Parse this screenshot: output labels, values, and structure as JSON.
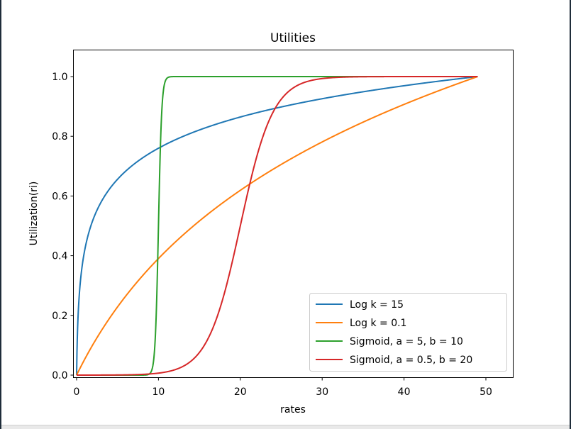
{
  "chart_data": {
    "type": "line",
    "title": "Utilities",
    "xlabel": "rates",
    "ylabel": "Utilization(ri)",
    "xlim": [
      -0.5,
      53.4
    ],
    "ylim": [
      -0.01,
      1.09
    ],
    "xticks": [
      "0",
      "10",
      "20",
      "30",
      "40",
      "50"
    ],
    "yticks": [
      "0.0",
      "0.2",
      "0.4",
      "0.6",
      "0.8",
      "1.0"
    ],
    "grid": false,
    "legend_position": "bottom-right",
    "series": [
      {
        "name": "Log k = 15",
        "color": "#1f77b4",
        "function": "log",
        "k": 15
      },
      {
        "name": "Log k = 0.1",
        "color": "#ff7f0e",
        "function": "log",
        "k": 0.1
      },
      {
        "name": "Sigmoid, a = 5, b = 10",
        "color": "#2ca02c",
        "function": "sigmoid",
        "a": 5,
        "b": 10
      },
      {
        "name": "Sigmoid, a = 0.5, b = 20",
        "color": "#d62728",
        "function": "sigmoid",
        "a": 0.5,
        "b": 20
      }
    ],
    "x_range": [
      0,
      49
    ]
  }
}
